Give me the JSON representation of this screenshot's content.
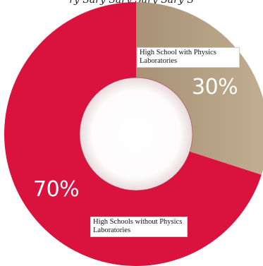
{
  "top_text": "ry Sary Sary Sary Sary S",
  "chart_data": {
    "type": "pie",
    "variant": "donut",
    "title": "",
    "slices": [
      {
        "label": "High School with Physics Laboratories",
        "value": 30,
        "display": "30%",
        "color": "#b49e7e"
      },
      {
        "label": "High Schools without Physics Laboratories",
        "value": 70,
        "display": "70%",
        "color": "#d9123e"
      }
    ],
    "start": "12 o'clock",
    "direction": "clockwise",
    "legend": "none"
  }
}
